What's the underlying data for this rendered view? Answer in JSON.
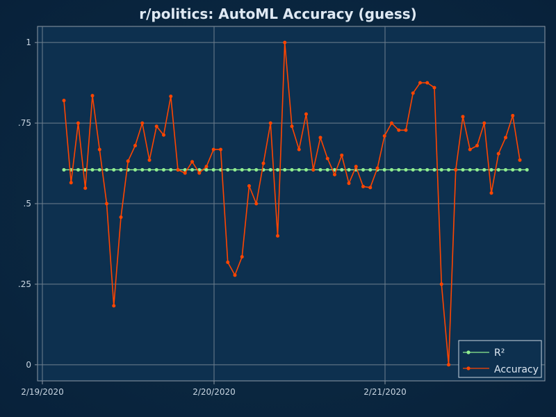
{
  "chart_data": {
    "type": "line",
    "title": "r/politics: AutoML Accuracy (guess)",
    "xlabel": "",
    "ylabel": "",
    "x_ticks": [
      "2/19/2020",
      "2/20/2020",
      "2/21/2020"
    ],
    "y_ticks": [
      "0",
      ".25",
      ".5",
      ".75",
      "1"
    ],
    "ylim": [
      -0.05,
      1.05
    ],
    "grid": true,
    "legend_position": "bottom-right",
    "series": [
      {
        "name": "R²",
        "color": "#90ee90",
        "values": [
          0.605,
          0.605,
          0.605,
          0.605,
          0.605,
          0.605,
          0.605,
          0.605,
          0.605,
          0.605,
          0.605,
          0.605,
          0.605,
          0.605,
          0.605,
          0.605,
          0.605,
          0.605,
          0.605,
          0.605,
          0.605,
          0.605,
          0.605,
          0.605,
          0.605,
          0.605,
          0.605,
          0.605,
          0.605,
          0.605,
          0.605,
          0.605,
          0.605,
          0.605,
          0.605,
          0.605,
          0.605,
          0.605,
          0.605,
          0.605,
          0.605,
          0.605,
          0.605,
          0.605,
          0.605,
          0.605,
          0.605,
          0.605,
          0.605,
          0.605,
          0.605,
          0.605,
          0.605,
          0.605,
          0.605,
          0.605,
          0.605,
          0.605,
          0.605,
          0.605,
          0.605,
          0.605,
          0.605,
          0.605,
          0.605,
          0.605
        ]
      },
      {
        "name": "Accuracy",
        "color": "#ff4500",
        "values": [
          0.82,
          0.565,
          0.75,
          0.548,
          0.835,
          0.668,
          0.5,
          0.183,
          0.458,
          0.632,
          0.68,
          0.75,
          0.635,
          0.74,
          0.713,
          0.833,
          0.605,
          0.595,
          0.63,
          0.595,
          0.615,
          0.668,
          0.668,
          0.318,
          0.278,
          0.335,
          0.555,
          0.5,
          0.625,
          0.75,
          0.4,
          1.0,
          0.74,
          0.668,
          0.778,
          0.605,
          0.705,
          0.64,
          0.59,
          0.65,
          0.563,
          0.615,
          0.553,
          0.55,
          0.61,
          0.71,
          0.75,
          0.728,
          0.728,
          0.843,
          0.875,
          0.875,
          0.86,
          0.25,
          0.0,
          0.605,
          0.77,
          0.668,
          0.68,
          0.75,
          0.533,
          0.655,
          0.705,
          0.773,
          0.635
        ]
      }
    ]
  }
}
